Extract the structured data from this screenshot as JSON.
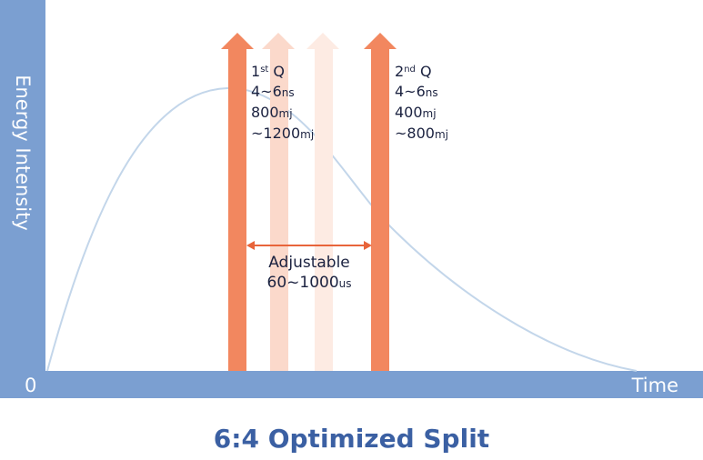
{
  "axes": {
    "y_label": "Energy Intensity",
    "x_label": "Time",
    "origin": "0"
  },
  "pulses": [
    {
      "ordinal_number": "1",
      "ordinal_suffix": "st",
      "letter": "Q",
      "duration_value": "4~6",
      "duration_unit": "ns",
      "energy_min_value": "800",
      "energy_min_unit": "mj",
      "energy_max_value": "~1200",
      "energy_max_unit": "mj"
    },
    {
      "ordinal_number": "2",
      "ordinal_suffix": "nd",
      "letter": "Q",
      "duration_value": "4~6",
      "duration_unit": "ns",
      "energy_min_value": "400",
      "energy_min_unit": "mj",
      "energy_max_value": "~800",
      "energy_max_unit": "mj"
    }
  ],
  "interval": {
    "title": "Adjustable",
    "value": "60~1000",
    "unit": "us"
  },
  "caption": "6:4 Optimized Split",
  "colors": {
    "axis_band": "#7b9fd1",
    "pulse_primary": "#f2875f",
    "pulse_faded_1": "#fbd9cb",
    "pulse_faded_2": "#fdebe3",
    "curve": "#c3d6ea",
    "interval_arrow": "#e8643a",
    "text_dark": "#1b2240",
    "caption": "#3b60a3"
  }
}
